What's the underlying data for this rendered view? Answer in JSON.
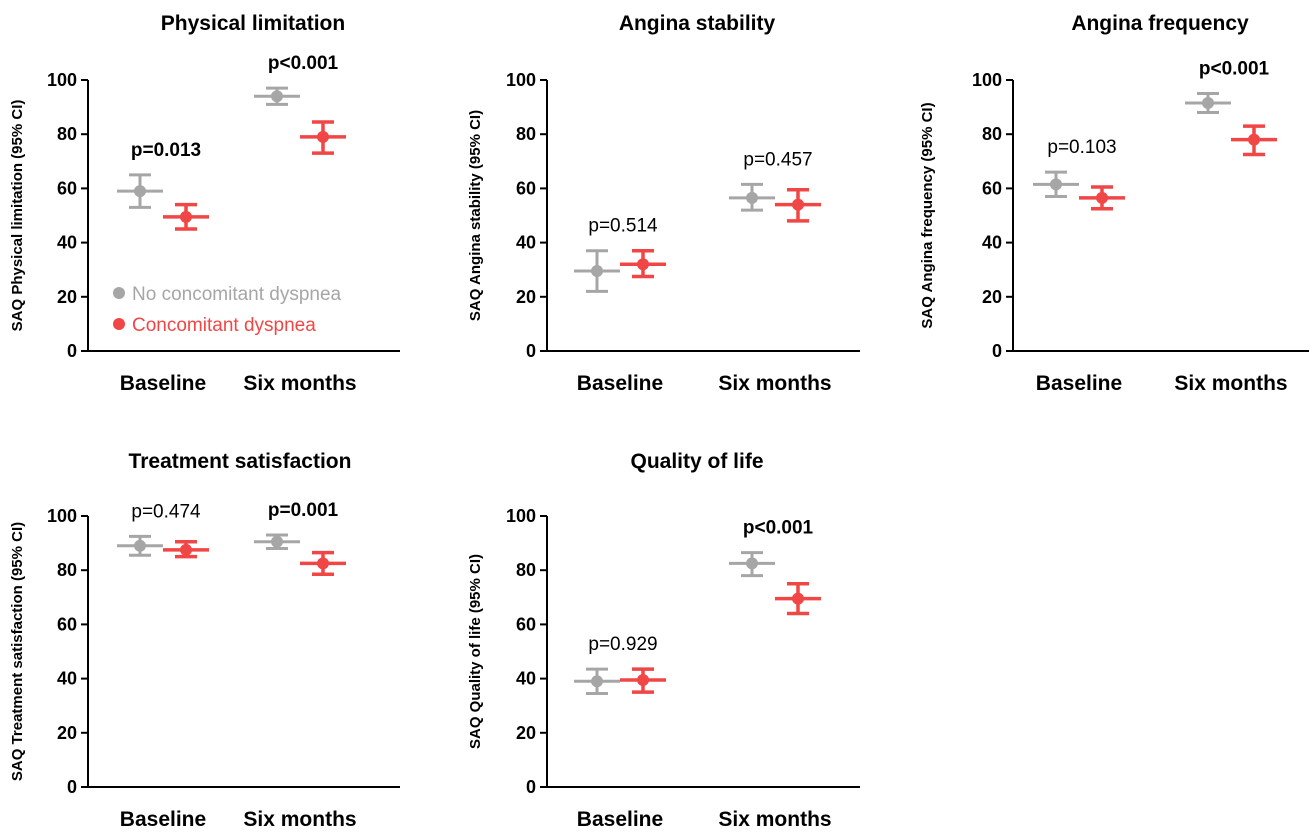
{
  "colors": {
    "no_dyspnea": "#a6a6a6",
    "dyspnea": "#f04646"
  },
  "legend": {
    "no_dyspnea": "No concomitant dyspnea",
    "dyspnea": "Concomitant dyspnea"
  },
  "chart_data": [
    {
      "type": "scatter",
      "title": "Physical limitation",
      "ylabel": "SAQ Physical limitation (95% CI)",
      "ylim": [
        0,
        100
      ],
      "yticks": [
        "0",
        "20",
        "40",
        "60",
        "80",
        "100"
      ],
      "categories": [
        "Baseline",
        "Six months"
      ],
      "pvalues": [
        {
          "text": "p=0.013",
          "bold": true
        },
        {
          "text": "p<0.001",
          "bold": true
        }
      ],
      "series": [
        {
          "name": "No concomitant dyspnea",
          "values": [
            59,
            94
          ],
          "ci_low": [
            53,
            91
          ],
          "ci_high": [
            65,
            97
          ]
        },
        {
          "name": "Concomitant dyspnea",
          "values": [
            49.5,
            79
          ],
          "ci_low": [
            45,
            73
          ],
          "ci_high": [
            54,
            84.5
          ]
        }
      ]
    },
    {
      "type": "scatter",
      "title": "Angina stability",
      "ylabel": "SAQ Angina stability (95% CI)",
      "ylim": [
        0,
        100
      ],
      "yticks": [
        "0",
        "20",
        "40",
        "60",
        "80",
        "100"
      ],
      "categories": [
        "Baseline",
        "Six months"
      ],
      "pvalues": [
        {
          "text": "p=0.514",
          "bold": false
        },
        {
          "text": "p=0.457",
          "bold": false
        }
      ],
      "series": [
        {
          "name": "No concomitant dyspnea",
          "values": [
            29.5,
            56.5
          ],
          "ci_low": [
            22,
            52
          ],
          "ci_high": [
            37,
            61.5
          ]
        },
        {
          "name": "Concomitant dyspnea",
          "values": [
            32,
            54
          ],
          "ci_low": [
            27.5,
            48
          ],
          "ci_high": [
            37,
            59.5
          ]
        }
      ]
    },
    {
      "type": "scatter",
      "title": "Angina frequency",
      "ylabel": "SAQ Angina frequency  (95% CI)",
      "ylim": [
        0,
        100
      ],
      "yticks": [
        "0",
        "20",
        "40",
        "60",
        "80",
        "100"
      ],
      "categories": [
        "Baseline",
        "Six months"
      ],
      "pvalues": [
        {
          "text": "p=0.103",
          "bold": false
        },
        {
          "text": "p<0.001",
          "bold": true
        }
      ],
      "series": [
        {
          "name": "No concomitant dyspnea",
          "values": [
            61.5,
            91.5
          ],
          "ci_low": [
            57,
            88
          ],
          "ci_high": [
            66,
            95
          ]
        },
        {
          "name": "Concomitant dyspnea",
          "values": [
            56.5,
            78
          ],
          "ci_low": [
            52.5,
            72.5
          ],
          "ci_high": [
            60.5,
            83
          ]
        }
      ]
    },
    {
      "type": "scatter",
      "title": "Treatment satisfaction",
      "ylabel": "SAQ Treatment satisfaction (95% CI)",
      "ylim": [
        0,
        100
      ],
      "yticks": [
        "0",
        "20",
        "40",
        "60",
        "80",
        "100"
      ],
      "categories": [
        "Baseline",
        "Six months"
      ],
      "pvalues": [
        {
          "text": "p=0.474",
          "bold": false
        },
        {
          "text": "p=0.001",
          "bold": true
        }
      ],
      "series": [
        {
          "name": "No concomitant dyspnea",
          "values": [
            89,
            90.5
          ],
          "ci_low": [
            85.5,
            88
          ],
          "ci_high": [
            92.5,
            93
          ]
        },
        {
          "name": "Concomitant dyspnea",
          "values": [
            87.5,
            82.5
          ],
          "ci_low": [
            85,
            78.5
          ],
          "ci_high": [
            90.5,
            86.5
          ]
        }
      ]
    },
    {
      "type": "scatter",
      "title": "Quality of life",
      "ylabel": "SAQ Quality of life (95% CI)",
      "ylim": [
        0,
        100
      ],
      "yticks": [
        "0",
        "20",
        "40",
        "60",
        "80",
        "100"
      ],
      "categories": [
        "Baseline",
        "Six months"
      ],
      "pvalues": [
        {
          "text": "p=0.929",
          "bold": false
        },
        {
          "text": "p<0.001",
          "bold": true
        }
      ],
      "series": [
        {
          "name": "No concomitant dyspnea",
          "values": [
            39,
            82.5
          ],
          "ci_low": [
            34.5,
            78
          ],
          "ci_high": [
            43.5,
            86.5
          ]
        },
        {
          "name": "Concomitant dyspnea",
          "values": [
            39.5,
            69.5
          ],
          "ci_low": [
            35,
            64
          ],
          "ci_high": [
            43.5,
            75
          ]
        }
      ]
    }
  ]
}
